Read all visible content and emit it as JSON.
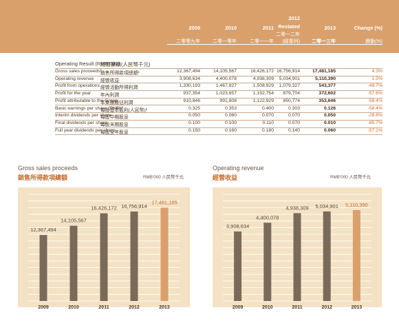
{
  "header": {
    "years": [
      "2009",
      "2010",
      "2011",
      "2012",
      "2013"
    ],
    "restated_label": "Restated",
    "years_cn": [
      "二零零九年",
      "二零一零年",
      "二零一一年",
      "二零一二年",
      "二零一三年"
    ],
    "restated_cn": "(經重列)",
    "change_label": "Change (%)",
    "change_cn": "變動(%)"
  },
  "section": {
    "title_en": "Operating Result (RMB'000)",
    "title_cn": "經營業績(人民幣千元)"
  },
  "rows": [
    {
      "en": "Gross sales proceeds¹",
      "cn": "銷售所得款項總額¹",
      "values": [
        "12,367,494",
        "14,105,567",
        "16,426,172",
        "16,756,914",
        "17,481,185"
      ],
      "change": "4.3%"
    },
    {
      "en": "Operating revenue",
      "cn": "經營收益",
      "values": [
        "3,908,634",
        "4,400,078",
        "4,938,309",
        "5,034,901",
        "5,110,390"
      ],
      "change": "1.5%"
    },
    {
      "en": "Profit from operations",
      "cn": "經營活動所得利潤",
      "values": [
        "1,330,193",
        "1,467,927",
        "1,508,929",
        "1,079,327",
        "543,377"
      ],
      "change": "-49.7%"
    },
    {
      "en": "Profit for the year",
      "cn": "年內利潤",
      "values": [
        "937,354",
        "1,023,657",
        "1,152,754",
        "879,704",
        "372,602"
      ],
      "change": "-57.6%"
    },
    {
      "en": "Profit attributable to the Group",
      "cn": "本集團應佔利潤",
      "values": [
        "910,846",
        "991,808",
        "1,122,929",
        "850,774",
        "353,646"
      ],
      "change": "-58.4%"
    },
    {
      "en": "Basic earnings per share (RMB)²",
      "cn": "每股基本盈利(人民幣)²",
      "values": [
        "0.325",
        "0.353",
        "0.400",
        "0.303",
        "0.126"
      ],
      "change": "-58.4%"
    },
    {
      "en": "Interim dividends per share",
      "cn": "每股中期股息",
      "values": [
        "0.050",
        "0.060",
        "0.070",
        "0.070",
        "0.050"
      ],
      "change": "-28.6%"
    },
    {
      "en": "Final dividends per share",
      "cn": "每股末期股息",
      "values": [
        "0.100",
        "0.100",
        "0.110",
        "0.070",
        "0.010"
      ],
      "change": "-85.7%"
    },
    {
      "en": "Full year dividends per share",
      "cn": "每股全年股息",
      "values": [
        "0.150",
        "0.160",
        "0.180",
        "0.140",
        "0.060"
      ],
      "change": "-57.1%"
    }
  ],
  "charts": {
    "gross": {
      "title_en": "Gross sales proceeds",
      "title_cn": "銷售所得款項總額",
      "unit": "RMB'000 人民幣千元"
    },
    "revenue": {
      "title_en": "Operating revenue",
      "title_cn": "經營收益",
      "unit": "RMB'000 人民幣千元"
    }
  },
  "chart_data": [
    {
      "type": "bar",
      "title": "Gross sales proceeds",
      "categories": [
        "2009",
        "2010",
        "2011",
        "2012",
        "2013"
      ],
      "values": [
        12367494,
        14105567,
        16426172,
        16756914,
        17481185
      ],
      "labels": [
        "12,367,494",
        "14,105,567",
        "16,426,172",
        "16,756,914",
        "17,481,185"
      ],
      "ylim": [
        0,
        20000000
      ],
      "grid": "horizontal",
      "colors": {
        "bar": "#7a6a5a",
        "highlight": "#d9a06c",
        "label_highlight": "#c76b2a"
      }
    },
    {
      "type": "bar",
      "title": "Operating revenue",
      "categories": [
        "2009",
        "2010",
        "2011",
        "2012",
        "2013"
      ],
      "values": [
        3908634,
        4400078,
        4938309,
        5034901,
        5110390
      ],
      "labels": [
        "3,908,634",
        "4,400,078",
        "4,938,309",
        "5,034,901",
        "5,110,390"
      ],
      "ylim": [
        0,
        6000000
      ],
      "grid": "horizontal",
      "colors": {
        "bar": "#7a6a5a",
        "highlight": "#d9a06c",
        "label_highlight": "#c76b2a"
      }
    }
  ]
}
